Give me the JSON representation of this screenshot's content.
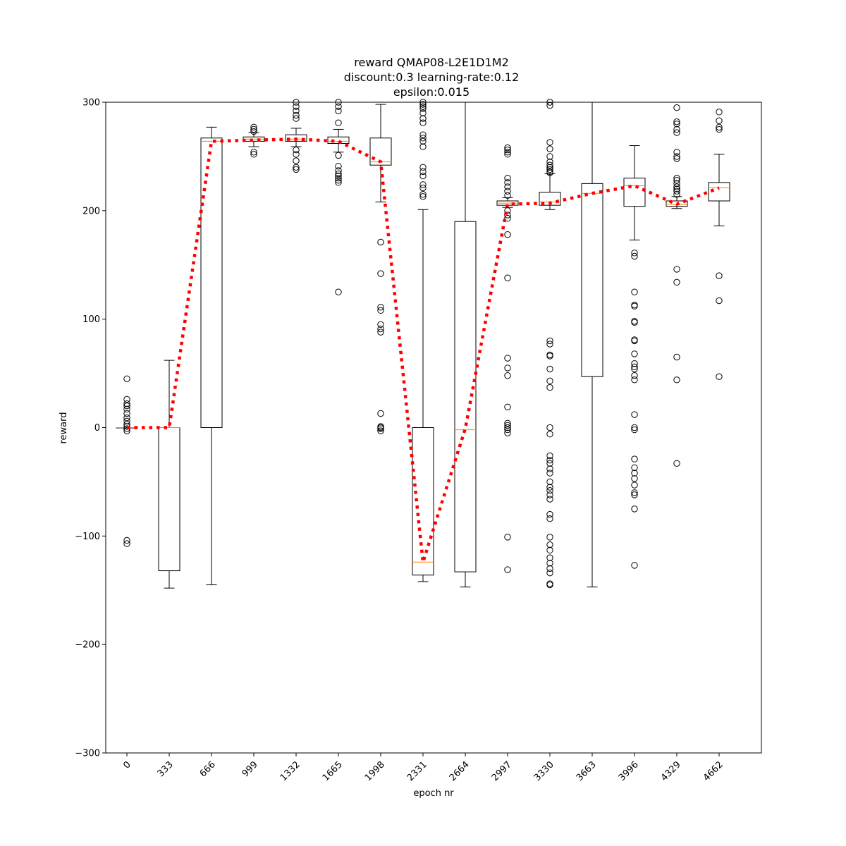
{
  "chart_data": {
    "type": "box",
    "title_lines": [
      "reward QMAP08-L2E1D1M2",
      "discount:0.3 learning-rate:0.12",
      "epsilon:0.015"
    ],
    "xlabel": "epoch nr",
    "ylabel": "reward",
    "ylim": [
      -300,
      300
    ],
    "yticks": [
      -300,
      -200,
      -100,
      0,
      100,
      200,
      300
    ],
    "grid": false,
    "categories": [
      "0",
      "333",
      "666",
      "999",
      "1332",
      "1665",
      "1998",
      "2331",
      "2664",
      "2997",
      "3330",
      "3663",
      "3996",
      "4329",
      "4662"
    ],
    "boxes": [
      {
        "epoch": "0",
        "q1": 0,
        "median": 0,
        "q3": 0,
        "whisker_low": 0,
        "whisker_high": 0,
        "fliers": [
          45,
          26,
          22,
          20,
          17,
          13,
          9,
          6,
          3,
          1,
          -1,
          -3,
          -104,
          -107
        ]
      },
      {
        "epoch": "333",
        "q1": -132,
        "median": 0,
        "q3": 0,
        "whisker_low": -148,
        "whisker_high": 62,
        "fliers": []
      },
      {
        "epoch": "666",
        "q1": 0,
        "median": 264,
        "q3": 267,
        "whisker_low": -145,
        "whisker_high": 277,
        "fliers": []
      },
      {
        "epoch": "999",
        "q1": 264,
        "median": 266,
        "q3": 268,
        "whisker_low": 259,
        "whisker_high": 272,
        "fliers": [
          277,
          275,
          273,
          254,
          252
        ]
      },
      {
        "epoch": "1332",
        "q1": 264,
        "median": 266,
        "q3": 270,
        "whisker_low": 259,
        "whisker_high": 276,
        "fliers": [
          300,
          296,
          292,
          288,
          285,
          256,
          252,
          246,
          240,
          238
        ]
      },
      {
        "epoch": "1665",
        "q1": 262,
        "median": 264,
        "q3": 268,
        "whisker_low": 254,
        "whisker_high": 275,
        "fliers": [
          300,
          296,
          292,
          281,
          251,
          241,
          237,
          234,
          232,
          230,
          228,
          226,
          125
        ]
      },
      {
        "epoch": "1998",
        "q1": 242,
        "median": 245,
        "q3": 267,
        "whisker_low": 208,
        "whisker_high": 298,
        "fliers": [
          171,
          142,
          111,
          108,
          95,
          91,
          88,
          13,
          1,
          0,
          -1,
          -3
        ]
      },
      {
        "epoch": "2331",
        "q1": -136,
        "median": -124,
        "q3": 0,
        "whisker_low": -142,
        "whisker_high": 201,
        "fliers": [
          300,
          298,
          296,
          294,
          290,
          285,
          281,
          270,
          267,
          264,
          259,
          240,
          236,
          232,
          224,
          221,
          215,
          213
        ]
      },
      {
        "epoch": "2664",
        "q1": -133,
        "median": -2,
        "q3": 190,
        "whisker_low": -147,
        "whisker_high": 300,
        "fliers": []
      },
      {
        "epoch": "2997",
        "q1": 205,
        "median": 207,
        "q3": 209,
        "whisker_low": 203,
        "whisker_high": 212,
        "fliers": [
          258,
          256,
          254,
          252,
          230,
          226,
          222,
          218,
          214,
          200,
          196,
          193,
          178,
          138,
          64,
          55,
          48,
          19,
          4,
          2,
          0,
          -2,
          -5,
          -101,
          -131
        ]
      },
      {
        "epoch": "3330",
        "q1": 205,
        "median": 208,
        "q3": 217,
        "whisker_low": 201,
        "whisker_high": 234,
        "fliers": [
          300,
          297,
          263,
          257,
          250,
          245,
          242,
          240,
          238,
          236,
          235,
          80,
          77,
          67,
          66,
          54,
          43,
          37,
          0,
          -6,
          -26,
          -30,
          -33,
          -38,
          -42,
          -50,
          -55,
          -58,
          -62,
          -66,
          -80,
          -84,
          -101,
          -108,
          -113,
          -120,
          -125,
          -130,
          -134,
          -144,
          -145
        ]
      },
      {
        "epoch": "3663",
        "q1": 47,
        "median": 216,
        "q3": 225,
        "whisker_low": -147,
        "whisker_high": 300,
        "fliers": []
      },
      {
        "epoch": "3996",
        "q1": 204,
        "median": 223,
        "q3": 230,
        "whisker_low": 173,
        "whisker_high": 260,
        "fliers": [
          161,
          158,
          125,
          113,
          112,
          98,
          97,
          81,
          80,
          68,
          59,
          56,
          54,
          48,
          44,
          12,
          0,
          -2,
          -29,
          -37,
          -42,
          -47,
          -53,
          -60,
          -62,
          -75,
          -127
        ]
      },
      {
        "epoch": "4329",
        "q1": 204,
        "median": 206,
        "q3": 209,
        "whisker_low": 202,
        "whisker_high": 213,
        "fliers": [
          295,
          282,
          280,
          275,
          272,
          254,
          250,
          248,
          230,
          228,
          225,
          222,
          220,
          218,
          215,
          146,
          134,
          65,
          44,
          -33
        ]
      },
      {
        "epoch": "4662",
        "q1": 209,
        "median": 221,
        "q3": 226,
        "whisker_low": 186,
        "whisker_high": 252,
        "fliers": [
          291,
          283,
          277,
          275,
          140,
          117,
          47
        ]
      }
    ],
    "mean_line": {
      "values": [
        0,
        0,
        264,
        265,
        266,
        264,
        245,
        -124,
        -1,
        206,
        207,
        216,
        223,
        206,
        221
      ],
      "color": "#ff0000",
      "style": "dotted"
    },
    "colors": {
      "box": "#000000",
      "median": "#ff7f0e",
      "mean_line": "#ff0000"
    }
  }
}
